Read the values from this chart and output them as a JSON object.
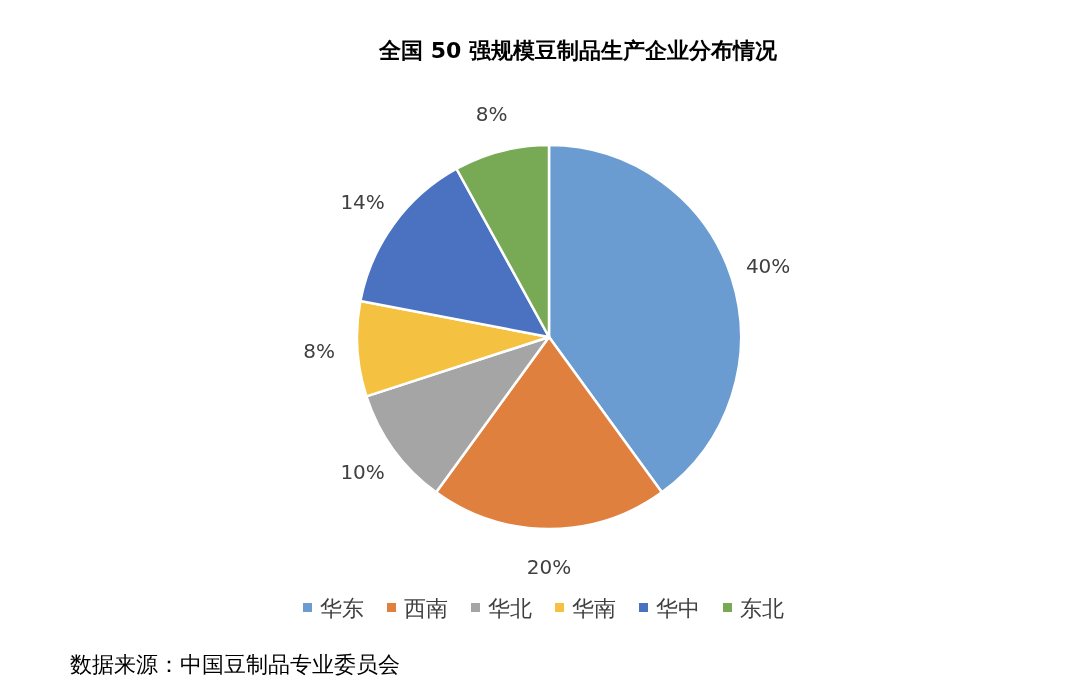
{
  "chart_data": {
    "type": "pie",
    "title": "全国 50 强规模豆制品生产企业分布情况",
    "categories": [
      "华东",
      "西南",
      "华北",
      "华南",
      "华中",
      "东北"
    ],
    "values": [
      40,
      20,
      10,
      8,
      14,
      8
    ],
    "colors": [
      "#6a9bd1",
      "#e0803f",
      "#a5a5a5",
      "#f4c140",
      "#4a72c0",
      "#78a954"
    ],
    "value_labels": [
      "40%",
      "20%",
      "10%",
      "8%",
      "14%",
      "8%"
    ],
    "legend": "bottom",
    "annotations": [
      "数据来源：中国豆制品专业委员会"
    ]
  }
}
